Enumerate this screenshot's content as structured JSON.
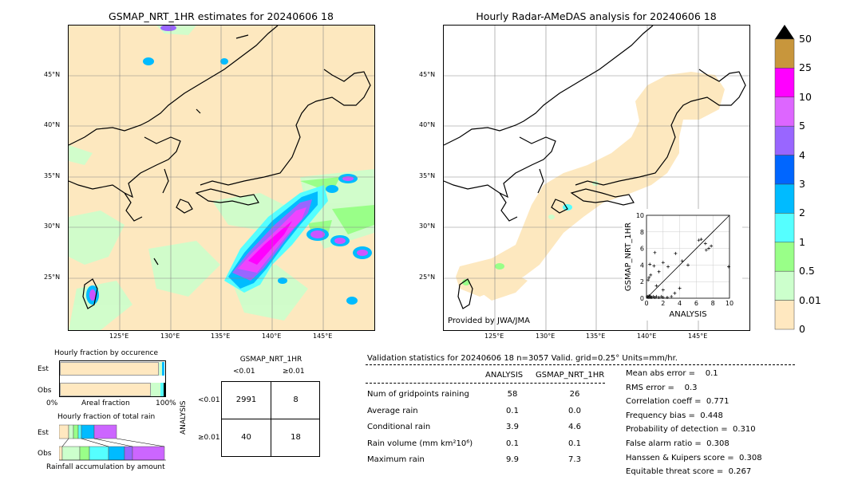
{
  "left_map": {
    "title": "GSMAP_NRT_1HR estimates for 20240606 18",
    "lat_labels": [
      "45°N",
      "40°N",
      "35°N",
      "30°N",
      "25°N"
    ],
    "lon_labels": [
      "125°E",
      "130°E",
      "135°E",
      "140°E",
      "145°E"
    ]
  },
  "right_map": {
    "title": "Hourly Radar-AMeDAS analysis for 20240606 18",
    "lat_labels": [
      "45°N",
      "40°N",
      "35°N",
      "30°N",
      "25°N"
    ],
    "lon_labels": [
      "125°E",
      "130°E",
      "135°E",
      "140°E",
      "145°E"
    ],
    "credit": "Provided by JWA/JMA"
  },
  "colorbar": {
    "labels": [
      "50",
      "25",
      "10",
      "5",
      "4",
      "3",
      "2",
      "1",
      "0.5",
      "0.01",
      "0"
    ],
    "colors": [
      "#c8963c",
      "#ff00ff",
      "#dd66ff",
      "#9966ff",
      "#0066ff",
      "#00bbff",
      "#55ffff",
      "#99ff88",
      "#ccffcc",
      "#ffe8c0"
    ]
  },
  "inset_scatter": {
    "xlabel": "ANALYSIS",
    "ylabel": "GSMAP_NRT_1HR",
    "ticks": [
      "0",
      "2",
      "4",
      "6",
      "8",
      "10"
    ]
  },
  "occurrence": {
    "title": "Hourly fraction by occurence",
    "rows": [
      "Est",
      "Obs"
    ],
    "axis_left": "0%",
    "axis_mid": "Areal fraction",
    "axis_right": "100%"
  },
  "total_rain": {
    "title": "Hourly fraction of total rain",
    "rows": [
      "Est",
      "Obs"
    ],
    "caption": "Rainfall accumulation by amount"
  },
  "contingency": {
    "title": "GSMAP_NRT_1HR",
    "col_lt": "<0.01",
    "col_ge": "≥0.01",
    "side_label": "ANALYSIS",
    "row_lt": "<0.01",
    "row_ge": "≥0.01",
    "cells": [
      "2991",
      "8",
      "40",
      "18"
    ]
  },
  "validation": {
    "header": "Validation statistics for 20240606 18  n=3057 Valid. grid=0.25° Units=mm/hr.",
    "col1": "ANALYSIS",
    "col2": "GSMAP_NRT_1HR",
    "rows": [
      {
        "label": "Num of gridpoints raining",
        "a": "58",
        "g": "26"
      },
      {
        "label": "Average rain",
        "a": "0.1",
        "g": "0.0"
      },
      {
        "label": "Conditional rain",
        "a": "3.9",
        "g": "4.6"
      },
      {
        "label": "Rain volume (mm km²10⁶)",
        "a": "0.1",
        "g": "0.1"
      },
      {
        "label": "Maximum rain",
        "a": "9.9",
        "g": "7.3"
      }
    ],
    "scores": [
      "Mean abs error =    0.1",
      "RMS error =    0.3",
      "Correlation coeff =  0.771",
      "Frequency bias =  0.448",
      "Probability of detection =  0.310",
      "False alarm ratio =  0.308",
      "Hanssen & Kuipers score =  0.308",
      "Equitable threat score =  0.267"
    ]
  },
  "chart_data": {
    "type": "scatter",
    "xlabel": "ANALYSIS",
    "ylabel": "GSMAP_NRT_1HR",
    "xlim": [
      0,
      10
    ],
    "ylim": [
      0,
      10
    ],
    "points": [
      [
        0.1,
        0.2
      ],
      [
        0.2,
        0.1
      ],
      [
        0.3,
        0.3
      ],
      [
        0.4,
        0.1
      ],
      [
        0.5,
        0.2
      ],
      [
        0.6,
        0.1
      ],
      [
        0.8,
        0.2
      ],
      [
        1.0,
        0.1
      ],
      [
        1.2,
        0.2
      ],
      [
        1.5,
        0.1
      ],
      [
        1.8,
        0.2
      ],
      [
        2.0,
        0.1
      ],
      [
        2.5,
        0.1
      ],
      [
        3.0,
        0.2
      ],
      [
        0.2,
        2.2
      ],
      [
        0.3,
        2.5
      ],
      [
        0.5,
        2.8
      ],
      [
        0.4,
        4.1
      ],
      [
        0.9,
        3.9
      ],
      [
        1.0,
        5.5
      ],
      [
        1.5,
        3.2
      ],
      [
        2.0,
        4.3
      ],
      [
        2.6,
        3.8
      ],
      [
        3.5,
        5.4
      ],
      [
        4.3,
        4.5
      ],
      [
        5.0,
        4.0
      ],
      [
        6.3,
        7.0
      ],
      [
        6.6,
        7.1
      ],
      [
        7.1,
        6.6
      ],
      [
        7.5,
        6.0
      ],
      [
        7.8,
        6.3
      ],
      [
        7.2,
        5.8
      ],
      [
        9.9,
        3.8
      ],
      [
        2.0,
        1.0
      ],
      [
        4.0,
        1.2
      ],
      [
        1.2,
        1.5
      ],
      [
        3.4,
        0.6
      ]
    ],
    "diagonal": true
  }
}
